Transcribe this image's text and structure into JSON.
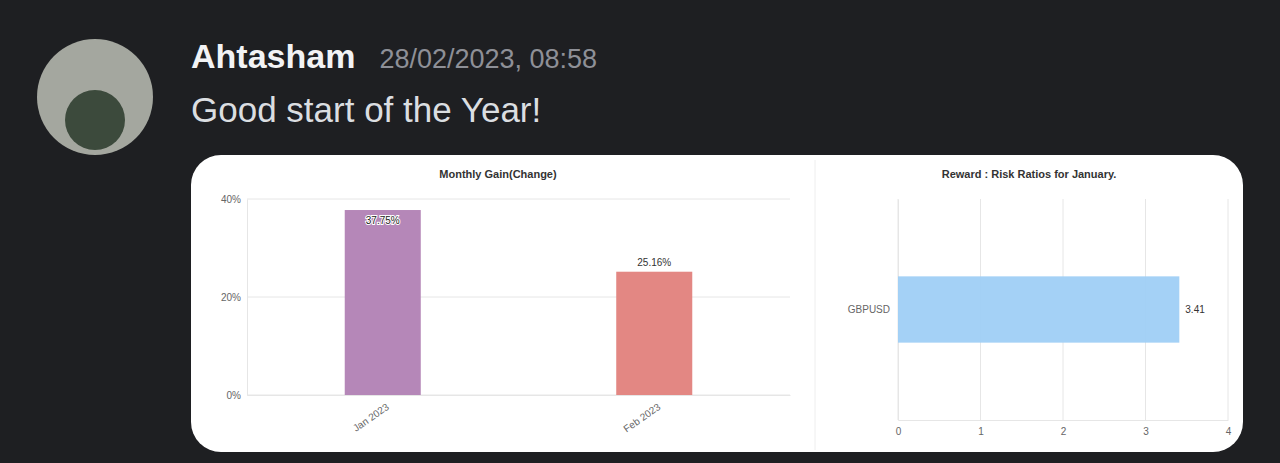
{
  "message": {
    "author": "Ahtasham",
    "timestamp": "28/02/2023, 08:58",
    "text": "Good start of the Year!"
  },
  "chart_data": [
    {
      "type": "bar",
      "title": "Monthly Gain(Change)",
      "categories": [
        "Jan 2023",
        "Feb 2023"
      ],
      "values": [
        37.75,
        25.16
      ],
      "value_labels": [
        "37.75%",
        "25.16%"
      ],
      "data_labels": true,
      "colors": [
        "#b587b8",
        "#e38783"
      ],
      "ylim": [
        0,
        40
      ],
      "yticks": [
        {
          "value": 0,
          "label": "0%"
        },
        {
          "value": 20,
          "label": "20%"
        },
        {
          "value": 40,
          "label": "40%"
        }
      ],
      "grid": true
    },
    {
      "type": "bar",
      "orientation": "horizontal",
      "title": "Reward : Risk Ratios for January.",
      "categories": [
        "GBPUSD"
      ],
      "values": [
        3.41
      ],
      "data_labels": true,
      "color": "#9fcff5",
      "xlim": [
        0,
        4
      ],
      "xticks": [
        0,
        1,
        2,
        3,
        4
      ],
      "grid": true
    }
  ]
}
